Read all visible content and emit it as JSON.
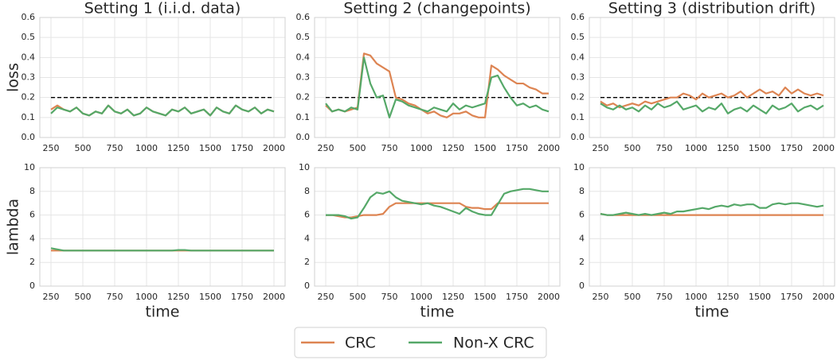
{
  "chart_data": [
    {
      "type": "line",
      "title": "Setting 1 (i.i.d. data)",
      "ylabel": "loss",
      "x": [
        250,
        300,
        350,
        400,
        450,
        500,
        550,
        600,
        650,
        700,
        750,
        800,
        850,
        900,
        950,
        1000,
        1050,
        1100,
        1150,
        1200,
        1250,
        1300,
        1350,
        1400,
        1450,
        1500,
        1550,
        1600,
        1650,
        1700,
        1750,
        1800,
        1850,
        1900,
        1950,
        2000
      ],
      "xlim": [
        162.5,
        2087.5
      ],
      "xticks": [
        250,
        500,
        750,
        1000,
        1250,
        1500,
        1750,
        2000
      ],
      "ylim": [
        0,
        0.6
      ],
      "yticks": [
        {
          "value": 0,
          "label": "0.0"
        },
        0.1,
        0.2,
        0.3,
        0.4,
        0.5,
        0.6
      ],
      "hline": 0.2,
      "series": [
        {
          "name": "CRC",
          "color": "#dd8452",
          "values": [
            0.14,
            0.16,
            0.14,
            0.13,
            0.15,
            0.12,
            0.11,
            0.13,
            0.12,
            0.16,
            0.13,
            0.12,
            0.14,
            0.11,
            0.12,
            0.15,
            0.13,
            0.12,
            0.11,
            0.14,
            0.13,
            0.15,
            0.12,
            0.13,
            0.14,
            0.11,
            0.15,
            0.13,
            0.12,
            0.16,
            0.14,
            0.13,
            0.15,
            0.12,
            0.14,
            0.13
          ]
        },
        {
          "name": "Non-X CRC",
          "color": "#55a868",
          "values": [
            0.12,
            0.15,
            0.14,
            0.13,
            0.15,
            0.12,
            0.11,
            0.13,
            0.12,
            0.16,
            0.13,
            0.12,
            0.14,
            0.11,
            0.12,
            0.15,
            0.13,
            0.12,
            0.11,
            0.14,
            0.13,
            0.15,
            0.12,
            0.13,
            0.14,
            0.11,
            0.15,
            0.13,
            0.12,
            0.16,
            0.14,
            0.13,
            0.15,
            0.12,
            0.14,
            0.13
          ]
        }
      ]
    },
    {
      "type": "line",
      "title": "Setting 2 (changepoints)",
      "x": [
        250,
        300,
        350,
        400,
        450,
        500,
        550,
        600,
        650,
        700,
        750,
        800,
        850,
        900,
        950,
        1000,
        1050,
        1100,
        1150,
        1200,
        1250,
        1300,
        1350,
        1400,
        1450,
        1500,
        1550,
        1600,
        1650,
        1700,
        1750,
        1800,
        1850,
        1900,
        1950,
        2000
      ],
      "xlim": [
        162.5,
        2087.5
      ],
      "xticks": [
        250,
        500,
        750,
        1000,
        1250,
        1500,
        1750,
        2000
      ],
      "ylim": [
        0,
        0.6
      ],
      "yticks": [
        {
          "value": 0,
          "label": "0.0"
        },
        0.1,
        0.2,
        0.3,
        0.4,
        0.5,
        0.6
      ],
      "hline": 0.2,
      "series": [
        {
          "name": "CRC",
          "color": "#dd8452",
          "values": [
            0.16,
            0.13,
            0.14,
            0.13,
            0.14,
            0.15,
            0.42,
            0.41,
            0.37,
            0.35,
            0.33,
            0.2,
            0.19,
            0.17,
            0.16,
            0.14,
            0.12,
            0.13,
            0.11,
            0.1,
            0.12,
            0.12,
            0.13,
            0.11,
            0.1,
            0.1,
            0.36,
            0.34,
            0.31,
            0.29,
            0.27,
            0.27,
            0.25,
            0.24,
            0.22,
            0.22
          ]
        },
        {
          "name": "Non-X CRC",
          "color": "#55a868",
          "values": [
            0.17,
            0.13,
            0.14,
            0.13,
            0.15,
            0.14,
            0.4,
            0.27,
            0.2,
            0.21,
            0.1,
            0.19,
            0.18,
            0.16,
            0.15,
            0.14,
            0.13,
            0.15,
            0.14,
            0.13,
            0.17,
            0.14,
            0.16,
            0.15,
            0.16,
            0.17,
            0.3,
            0.31,
            0.25,
            0.2,
            0.16,
            0.17,
            0.15,
            0.16,
            0.14,
            0.13
          ]
        }
      ]
    },
    {
      "type": "line",
      "title": "Setting 3 (distribution drift)",
      "x": [
        250,
        300,
        350,
        400,
        450,
        500,
        550,
        600,
        650,
        700,
        750,
        800,
        850,
        900,
        950,
        1000,
        1050,
        1100,
        1150,
        1200,
        1250,
        1300,
        1350,
        1400,
        1450,
        1500,
        1550,
        1600,
        1650,
        1700,
        1750,
        1800,
        1850,
        1900,
        1950,
        2000
      ],
      "xlim": [
        162.5,
        2087.5
      ],
      "xticks": [
        250,
        500,
        750,
        1000,
        1250,
        1500,
        1750,
        2000
      ],
      "ylim": [
        0,
        0.6
      ],
      "yticks": [
        {
          "value": 0,
          "label": "0.0"
        },
        0.1,
        0.2,
        0.3,
        0.4,
        0.5,
        0.6
      ],
      "hline": 0.2,
      "series": [
        {
          "name": "CRC",
          "color": "#dd8452",
          "values": [
            0.18,
            0.16,
            0.17,
            0.15,
            0.16,
            0.17,
            0.16,
            0.18,
            0.17,
            0.18,
            0.19,
            0.2,
            0.2,
            0.22,
            0.21,
            0.19,
            0.22,
            0.2,
            0.21,
            0.22,
            0.2,
            0.21,
            0.23,
            0.2,
            0.22,
            0.24,
            0.22,
            0.23,
            0.21,
            0.25,
            0.22,
            0.24,
            0.22,
            0.21,
            0.22,
            0.21
          ]
        },
        {
          "name": "Non-X CRC",
          "color": "#55a868",
          "values": [
            0.17,
            0.15,
            0.14,
            0.16,
            0.14,
            0.15,
            0.13,
            0.16,
            0.14,
            0.17,
            0.15,
            0.16,
            0.18,
            0.14,
            0.15,
            0.16,
            0.13,
            0.15,
            0.14,
            0.17,
            0.12,
            0.14,
            0.15,
            0.13,
            0.16,
            0.14,
            0.12,
            0.16,
            0.14,
            0.15,
            0.17,
            0.13,
            0.15,
            0.16,
            0.14,
            0.16
          ]
        }
      ]
    },
    {
      "type": "line",
      "ylabel": "lambda",
      "xlabel": "time",
      "x": [
        250,
        300,
        350,
        400,
        450,
        500,
        550,
        600,
        650,
        700,
        750,
        800,
        850,
        900,
        950,
        1000,
        1050,
        1100,
        1150,
        1200,
        1250,
        1300,
        1350,
        1400,
        1450,
        1500,
        1550,
        1600,
        1650,
        1700,
        1750,
        1800,
        1850,
        1900,
        1950,
        2000
      ],
      "xlim": [
        162.5,
        2087.5
      ],
      "xticks": [
        250,
        500,
        750,
        1000,
        1250,
        1500,
        1750,
        2000
      ],
      "ylim": [
        0,
        10
      ],
      "yticks": [
        0,
        2,
        4,
        6,
        8,
        10
      ],
      "series": [
        {
          "name": "CRC",
          "color": "#dd8452",
          "values": [
            3,
            3,
            3,
            3,
            3,
            3,
            3,
            3,
            3,
            3,
            3,
            3,
            3,
            3,
            3,
            3,
            3,
            3,
            3,
            3,
            3,
            3,
            3,
            3,
            3,
            3,
            3,
            3,
            3,
            3,
            3,
            3,
            3,
            3,
            3,
            3
          ]
        },
        {
          "name": "Non-X CRC",
          "color": "#55a868",
          "values": [
            3.2,
            3.1,
            3,
            3,
            3,
            3,
            3,
            3,
            3,
            3,
            3,
            3,
            3,
            3,
            3,
            3,
            3,
            3,
            3,
            3,
            3.05,
            3.05,
            3,
            3,
            3,
            3,
            3,
            3,
            3,
            3,
            3,
            3,
            3,
            3,
            3,
            3
          ]
        }
      ]
    },
    {
      "type": "line",
      "xlabel": "time",
      "x": [
        250,
        300,
        350,
        400,
        450,
        500,
        550,
        600,
        650,
        700,
        750,
        800,
        850,
        900,
        950,
        1000,
        1050,
        1100,
        1150,
        1200,
        1250,
        1300,
        1350,
        1400,
        1450,
        1500,
        1550,
        1600,
        1650,
        1700,
        1750,
        1800,
        1850,
        1900,
        1950,
        2000
      ],
      "xlim": [
        162.5,
        2087.5
      ],
      "xticks": [
        250,
        500,
        750,
        1000,
        1250,
        1500,
        1750,
        2000
      ],
      "ylim": [
        0,
        10
      ],
      "yticks": [
        0,
        2,
        4,
        6,
        8,
        10
      ],
      "series": [
        {
          "name": "CRC",
          "color": "#dd8452",
          "values": [
            6,
            6,
            5.9,
            5.8,
            5.8,
            5.9,
            6,
            6,
            6,
            6.1,
            6.7,
            7,
            7,
            7,
            7,
            7,
            7,
            7,
            7,
            7,
            7,
            7,
            6.7,
            6.6,
            6.6,
            6.5,
            6.5,
            7,
            7,
            7,
            7,
            7,
            7,
            7,
            7,
            7
          ]
        },
        {
          "name": "Non-X CRC",
          "color": "#55a868",
          "values": [
            6,
            6,
            6,
            5.9,
            5.7,
            5.8,
            6.6,
            7.5,
            7.9,
            7.8,
            8,
            7.5,
            7.2,
            7.1,
            7,
            6.9,
            7,
            6.8,
            6.7,
            6.5,
            6.3,
            6.1,
            6.6,
            6.3,
            6.1,
            6,
            6,
            6.9,
            7.8,
            8,
            8.1,
            8.2,
            8.2,
            8.1,
            8,
            8
          ]
        }
      ]
    },
    {
      "type": "line",
      "xlabel": "time",
      "x": [
        250,
        300,
        350,
        400,
        450,
        500,
        550,
        600,
        650,
        700,
        750,
        800,
        850,
        900,
        950,
        1000,
        1050,
        1100,
        1150,
        1200,
        1250,
        1300,
        1350,
        1400,
        1450,
        1500,
        1550,
        1600,
        1650,
        1700,
        1750,
        1800,
        1850,
        1900,
        1950,
        2000
      ],
      "xlim": [
        162.5,
        2087.5
      ],
      "xticks": [
        250,
        500,
        750,
        1000,
        1250,
        1500,
        1750,
        2000
      ],
      "ylim": [
        0,
        10
      ],
      "yticks": [
        0,
        2,
        4,
        6,
        8,
        10
      ],
      "series": [
        {
          "name": "CRC",
          "color": "#dd8452",
          "values": [
            6.1,
            6,
            6,
            6,
            6,
            6,
            6,
            6,
            6,
            6,
            6,
            6,
            6,
            6,
            6,
            6,
            6,
            6,
            6,
            6,
            6,
            6,
            6,
            6,
            6,
            6,
            6,
            6,
            6,
            6,
            6,
            6,
            6,
            6,
            6,
            6
          ]
        },
        {
          "name": "Non-X CRC",
          "color": "#55a868",
          "values": [
            6.1,
            6,
            6,
            6.1,
            6.2,
            6.1,
            6,
            6.1,
            6,
            6.1,
            6.2,
            6.1,
            6.3,
            6.3,
            6.4,
            6.5,
            6.6,
            6.5,
            6.7,
            6.8,
            6.7,
            6.9,
            6.8,
            6.9,
            6.9,
            6.6,
            6.6,
            6.9,
            7,
            6.9,
            7,
            7,
            6.9,
            6.8,
            6.7,
            6.8
          ]
        }
      ]
    }
  ]
}
